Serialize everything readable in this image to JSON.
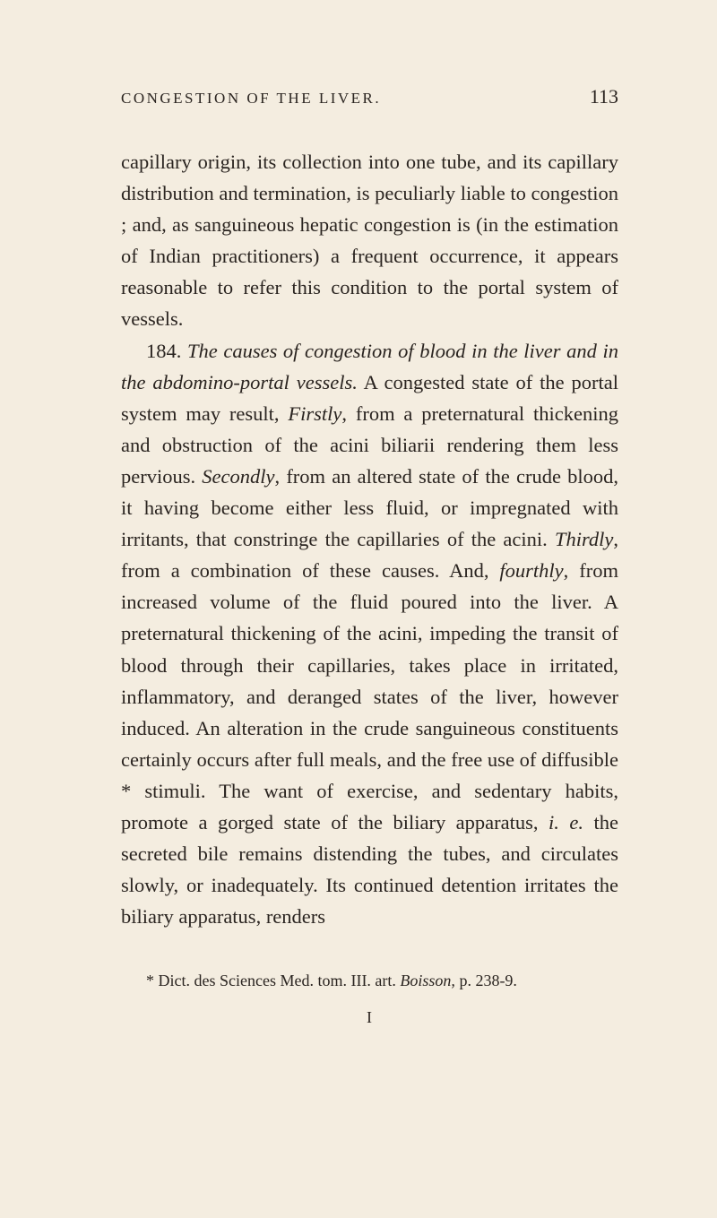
{
  "header": {
    "running_head": "CONGESTION OF THE LIVER.",
    "page_number": "113"
  },
  "paragraphs": {
    "p1": "capillary origin, its collection into one tube, and its capillary distribution and termination, is pecu­liarly liable to congestion ; and, as sanguineous hepatic congestion is (in the estimation of Indian practitioners) a frequent occurrence, it appears reasonable to refer this condition to the portal system of vessels.",
    "p2_num": "184. ",
    "p2_italic1": "The causes of congestion of blood in the liver and in the abdomino-portal vessels.",
    "p2_text1": " A congested state of the portal system may result, ",
    "p2_firstly": "Firstly",
    "p2_text2": ", from a preternatural thickening and obstruction of the acini biliarii rendering them less pervious. ",
    "p2_secondly": "Secondly",
    "p2_text3": ", from an altered state of the crude blood, it having become either less fluid, or impregnated with irritants, that constringe the capillaries of the acini. ",
    "p2_thirdly": "Thirdly",
    "p2_text4": ", from a combination of these causes. And, ",
    "p2_fourthly": "fourthly",
    "p2_text5": ", from increased volume of the fluid poured into the liver. A preternatural thickening of the acini, impeding the transit of blood through their capillaries, takes place in irritated, inflammatory, and deranged states of the liver, however induced. An alteration in the crude sanguineous constituents certainly occurs after full meals, and the free use of diffusible * stimuli. The want of exercise, and sedentary habits, promote a gorged state of the biliary apparatus, ",
    "p2_ie": "i. e.",
    "p2_text6": " the secreted bile remains distending the tubes, and circulates slowly, or inadequately. Its continued detention irritates the biliary apparatus, renders"
  },
  "footnote": {
    "text1": "* Dict. des Sciences Med. tom. III. art. ",
    "italic": "Boisson,",
    "text2": " p. 238-9."
  },
  "signature": "I"
}
